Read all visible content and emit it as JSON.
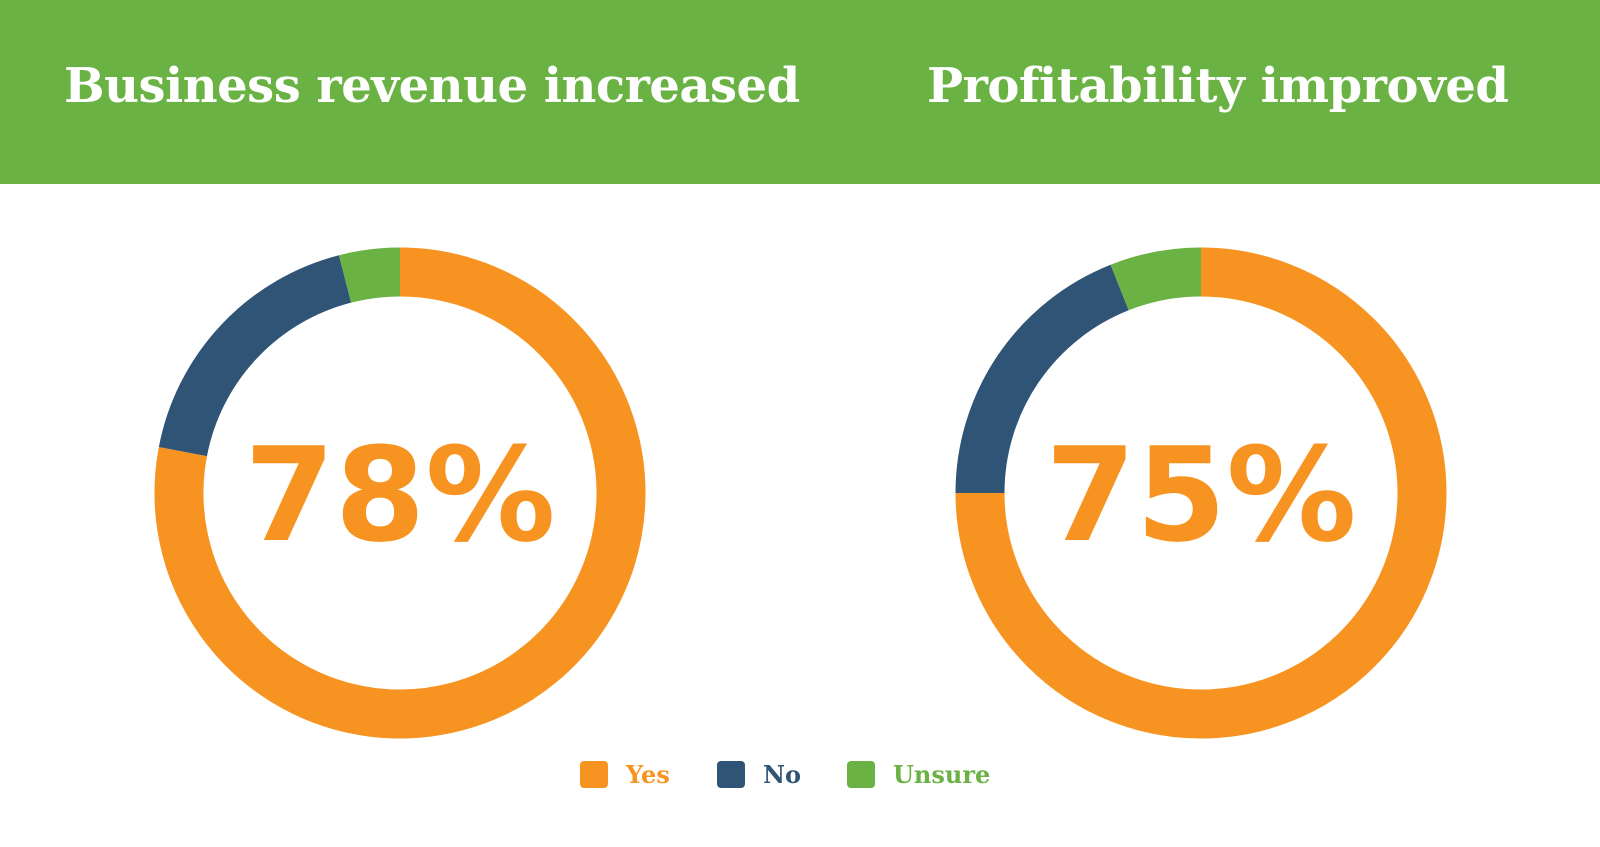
{
  "colors": {
    "header_bg": "#6bb244",
    "yes": "#f79421",
    "no": "#2f5476",
    "unsure": "#6bb244"
  },
  "legend": [
    {
      "label": "Yes",
      "color": "#f79421"
    },
    {
      "label": "No",
      "color": "#2f5476"
    },
    {
      "label": "Unsure",
      "color": "#6bb244"
    }
  ],
  "chart_data": [
    {
      "type": "pie",
      "title": "Business revenue increased",
      "center_label": "78%",
      "categories": [
        "Yes",
        "No",
        "Unsure"
      ],
      "values": [
        78,
        18,
        4
      ],
      "legend": "bottom"
    },
    {
      "type": "pie",
      "title": "Profitability improved",
      "center_label": "75%",
      "categories": [
        "Yes",
        "No",
        "Unsure"
      ],
      "values": [
        75,
        19,
        6
      ],
      "legend": "bottom"
    }
  ]
}
